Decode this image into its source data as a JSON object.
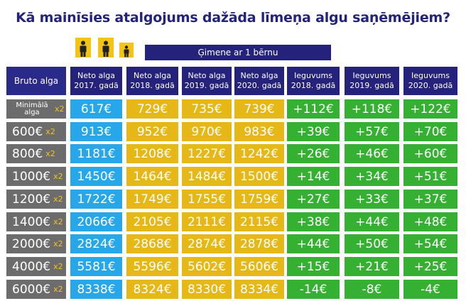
{
  "title": "Kā mainīsies atalgojums dažāda līmeņa algu saņēmējiem?",
  "family_label": "Ģimene ar 1 bērnu",
  "icons": [
    "adult-icon",
    "adult-icon",
    "child-icon"
  ],
  "colors": {
    "title": "#23237e",
    "header": "#24227a",
    "bruto": "#6c6c6c",
    "net_2017": "#27a7e9",
    "net_later": "#e6b817",
    "gain": "#35b032",
    "icon_bg": "#f2c417"
  },
  "headers": {
    "bruto": "Bruto alga",
    "n2017": [
      "Neto alga",
      "2017. gadā"
    ],
    "n2018": [
      "Neto alga",
      "2018. gadā"
    ],
    "n2019": [
      "Neto alga",
      "2019. gadā"
    ],
    "n2020": [
      "Neto alga",
      "2020. gadā"
    ],
    "g2018": [
      "Ieguvums",
      "2018. gadā"
    ],
    "g2019": [
      "Ieguvums",
      "2019. gadā"
    ],
    "g2020": [
      "Ieguvums",
      "2020. gadā"
    ]
  },
  "chart_data": {
    "type": "table",
    "multiplier": "x2",
    "rows": [
      {
        "bruto": "Minimālā alga",
        "n2017": "617€",
        "n2018": "729€",
        "n2019": "735€",
        "n2020": "739€",
        "g2018": "+112€",
        "g2019": "+118€",
        "g2020": "+122€"
      },
      {
        "bruto": "600€",
        "n2017": "913€",
        "n2018": "952€",
        "n2019": "970€",
        "n2020": "983€",
        "g2018": "+39€",
        "g2019": "+57€",
        "g2020": "+70€"
      },
      {
        "bruto": "800€",
        "n2017": "1181€",
        "n2018": "1208€",
        "n2019": "1227€",
        "n2020": "1242€",
        "g2018": "+26€",
        "g2019": "+46€",
        "g2020": "+60€"
      },
      {
        "bruto": "1000€",
        "n2017": "1450€",
        "n2018": "1464€",
        "n2019": "1484€",
        "n2020": "1500€",
        "g2018": "+14€",
        "g2019": "+34€",
        "g2020": "+51€"
      },
      {
        "bruto": "1200€",
        "n2017": "1722€",
        "n2018": "1749€",
        "n2019": "1755€",
        "n2020": "1759€",
        "g2018": "+27€",
        "g2019": "+33€",
        "g2020": "+37€"
      },
      {
        "bruto": "1400€",
        "n2017": "2066€",
        "n2018": "2105€",
        "n2019": "2111€",
        "n2020": "2115€",
        "g2018": "+38€",
        "g2019": "+44€",
        "g2020": "+48€"
      },
      {
        "bruto": "2000€",
        "n2017": "2824€",
        "n2018": "2868€",
        "n2019": "2874€",
        "n2020": "2878€",
        "g2018": "+44€",
        "g2019": "+50€",
        "g2020": "+54€"
      },
      {
        "bruto": "4000€",
        "n2017": "5581€",
        "n2018": "5596€",
        "n2019": "5602€",
        "n2020": "5606€",
        "g2018": "+15€",
        "g2019": "+21€",
        "g2020": "+25€"
      },
      {
        "bruto": "6000€",
        "n2017": "8338€",
        "n2018": "8324€",
        "n2019": "8330€",
        "n2020": "8334€",
        "g2018": "-14€",
        "g2019": "-8€",
        "g2020": "-4€"
      }
    ]
  }
}
